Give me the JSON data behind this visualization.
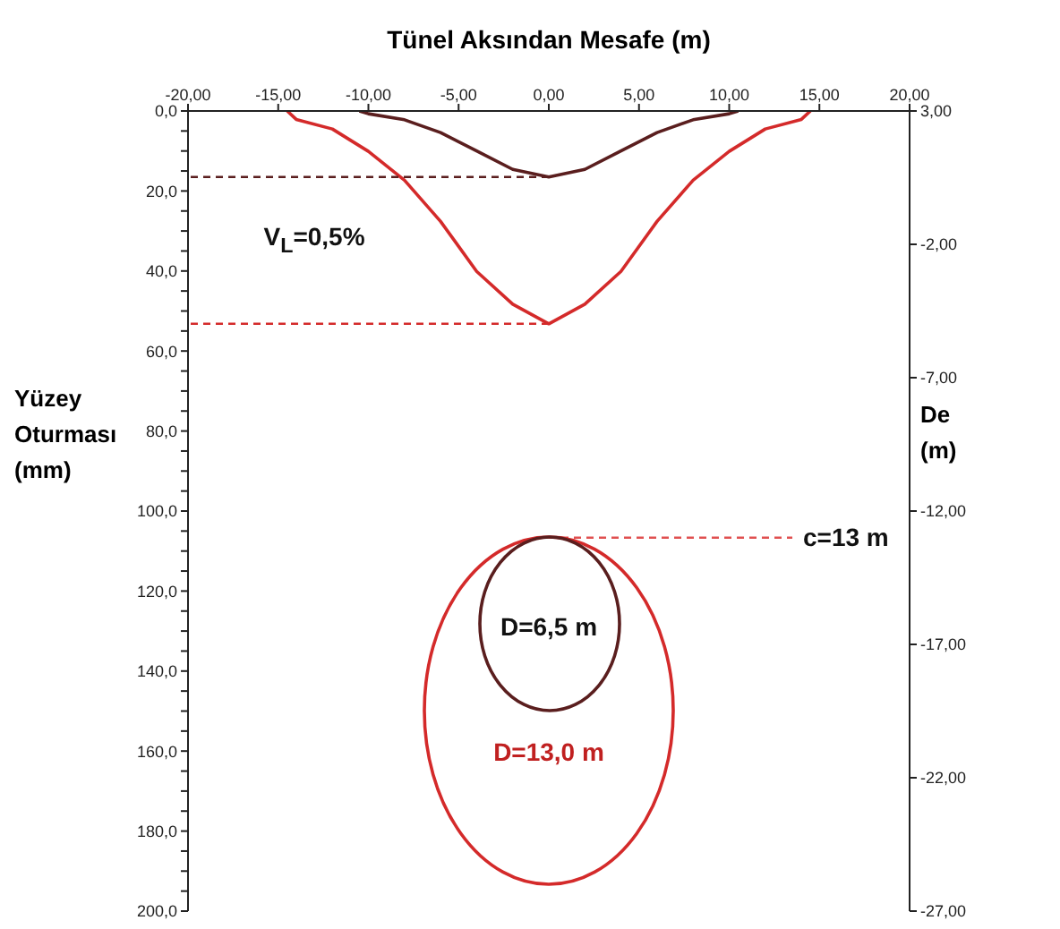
{
  "chart_data": {
    "type": "line",
    "xlabel": "Tünel Aksından Mesafe (m)",
    "ylabel": "Yüzey Oturması (mm)",
    "y2label": "De (m)",
    "xlim": [
      -20,
      20
    ],
    "xticks": [
      {
        "value": -20,
        "label": "-20,00"
      },
      {
        "value": -15,
        "label": "-15,00"
      },
      {
        "value": -10,
        "label": "-10,00"
      },
      {
        "value": -5,
        "label": "-5,00"
      },
      {
        "value": 0,
        "label": "0,00"
      },
      {
        "value": 5,
        "label": "5,00"
      },
      {
        "value": 10,
        "label": "10,00"
      },
      {
        "value": 15,
        "label": "15,00"
      },
      {
        "value": 20,
        "label": "20,00"
      }
    ],
    "ylim": [
      200,
      0
    ],
    "yticks": [
      {
        "value": 0,
        "label": "0,0"
      },
      {
        "value": 5,
        "label": null
      },
      {
        "value": 10,
        "label": null
      },
      {
        "value": 15,
        "label": null
      },
      {
        "value": 20,
        "label": "20,0"
      },
      {
        "value": 25,
        "label": null
      },
      {
        "value": 30,
        "label": null
      },
      {
        "value": 35,
        "label": null
      },
      {
        "value": 40,
        "label": "40,0"
      },
      {
        "value": 45,
        "label": null
      },
      {
        "value": 50,
        "label": null
      },
      {
        "value": 55,
        "label": null
      },
      {
        "value": 60,
        "label": "60,0"
      },
      {
        "value": 65,
        "label": null
      },
      {
        "value": 70,
        "label": null
      },
      {
        "value": 75,
        "label": null
      },
      {
        "value": 80,
        "label": "80,0"
      },
      {
        "value": 85,
        "label": null
      },
      {
        "value": 90,
        "label": null
      },
      {
        "value": 95,
        "label": null
      },
      {
        "value": 100,
        "label": "100,0"
      },
      {
        "value": 105,
        "label": null
      },
      {
        "value": 110,
        "label": null
      },
      {
        "value": 115,
        "label": null
      },
      {
        "value": 120,
        "label": "120,0"
      },
      {
        "value": 125,
        "label": null
      },
      {
        "value": 130,
        "label": null
      },
      {
        "value": 135,
        "label": null
      },
      {
        "value": 140,
        "label": "140,0"
      },
      {
        "value": 145,
        "label": null
      },
      {
        "value": 150,
        "label": null
      },
      {
        "value": 155,
        "label": null
      },
      {
        "value": 160,
        "label": "160,0"
      },
      {
        "value": 165,
        "label": null
      },
      {
        "value": 170,
        "label": null
      },
      {
        "value": 175,
        "label": null
      },
      {
        "value": 180,
        "label": "180,0"
      },
      {
        "value": 185,
        "label": null
      },
      {
        "value": 190,
        "label": null
      },
      {
        "value": 195,
        "label": null
      },
      {
        "value": 200,
        "label": "200,0"
      }
    ],
    "y2lim": [
      -27,
      3
    ],
    "y2ticks": [
      {
        "value": 3,
        "label": "3,00"
      },
      {
        "value": -2,
        "label": "-2,00"
      },
      {
        "value": -7,
        "label": "-7,00"
      },
      {
        "value": -12,
        "label": "-12,00"
      },
      {
        "value": -17,
        "label": "-17,00"
      },
      {
        "value": -22,
        "label": "-22,00"
      },
      {
        "value": -27,
        "label": "-27,00"
      }
    ],
    "marker": "none",
    "series": [
      {
        "color": "#5a1e1e",
        "x": [
          -10.5,
          -10,
          -8,
          -6,
          -4,
          -2,
          0,
          2,
          4,
          6,
          8,
          10,
          10.5
        ],
        "values": [
          0,
          0.7,
          2.2,
          5.4,
          10.0,
          14.6,
          16.5,
          14.6,
          10.0,
          5.4,
          2.2,
          0.7,
          0
        ]
      },
      {
        "color": "#d42a2a",
        "x": [
          -14.5,
          -14,
          -12,
          -10,
          -8,
          -6,
          -4,
          -2,
          0,
          2,
          4,
          6,
          8,
          10,
          12,
          14,
          14.5
        ],
        "values": [
          0,
          2.1,
          4.5,
          10.1,
          17.3,
          27.6,
          40.1,
          48.3,
          53.2,
          48.3,
          40.1,
          27.6,
          17.3,
          10.1,
          4.5,
          2.1,
          0
        ]
      },
      {
        "color": "#5a1e1e",
        "line_style": "dashed",
        "x": [
          0,
          -20
        ],
        "values": [
          16.5,
          16.5
        ]
      },
      {
        "color": "#d42a2a",
        "line_style": "dashed",
        "x": [
          0,
          -20
        ],
        "values": [
          53.2,
          53.2
        ]
      },
      {
        "color": "#e05050",
        "line_style": "dashed",
        "axis": "y2",
        "x": [
          0,
          13.5
        ],
        "values": [
          -13,
          -13
        ]
      }
    ],
    "annotations": [
      "V$_{L}$=0,5%",
      "D=6,5 m",
      "D=13,0 m",
      "c=13 m"
    ]
  }
}
